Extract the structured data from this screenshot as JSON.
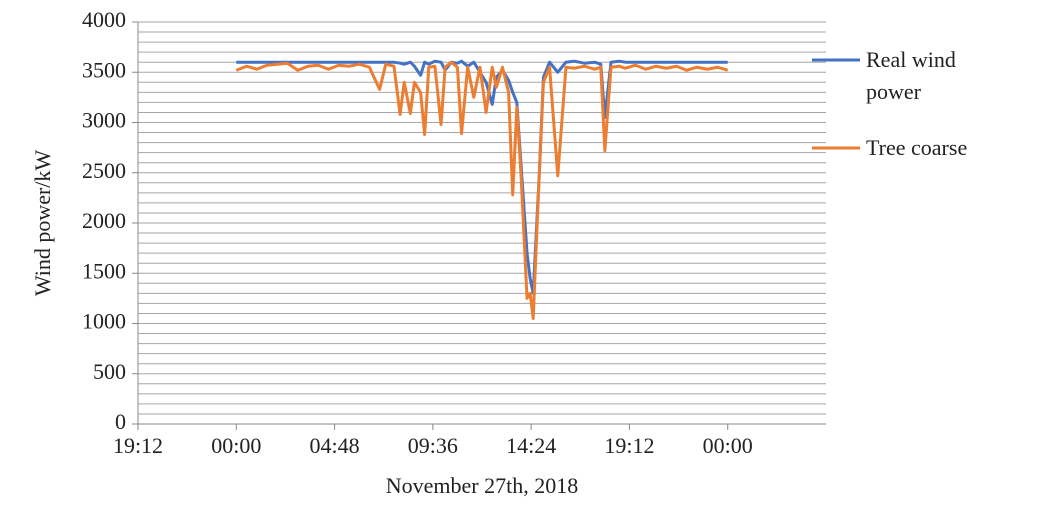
{
  "chart_data": {
    "type": "line",
    "y_label": "Wind power/kW",
    "x_label": "November 27th, 2018",
    "xlim": [
      -4.8,
      28.8
    ],
    "xticks": [
      {
        "value": -4.8,
        "label": "19:12"
      },
      {
        "value": 0,
        "label": "00:00"
      },
      {
        "value": 4.8,
        "label": "04:48"
      },
      {
        "value": 9.6,
        "label": "09:36"
      },
      {
        "value": 14.4,
        "label": "14:24"
      },
      {
        "value": 19.2,
        "label": "19:12"
      },
      {
        "value": 24,
        "label": "00:00"
      }
    ],
    "ylim": [
      0,
      4000
    ],
    "yticks": [
      0,
      500,
      1000,
      1500,
      2000,
      2500,
      3000,
      3500,
      4000
    ],
    "grid": true,
    "minor_grid": true,
    "legend": "right",
    "x": [
      0,
      0.5,
      1,
      1.5,
      2,
      2.5,
      3,
      3.5,
      4,
      4.5,
      5,
      5.5,
      6,
      6.5,
      7,
      7.3,
      7.7,
      8,
      8.2,
      8.5,
      8.7,
      9,
      9.2,
      9.4,
      9.7,
      10,
      10.2,
      10.5,
      10.8,
      11,
      11.3,
      11.6,
      11.9,
      12.2,
      12.5,
      12.7,
      13,
      13.3,
      13.5,
      13.7,
      13.9,
      14.2,
      14.35,
      14.5,
      14.8,
      15,
      15.3,
      15.7,
      16.1,
      16.5,
      17,
      17.5,
      17.8,
      18,
      18.3,
      18.7,
      19,
      19.5,
      20,
      20.5,
      21,
      21.5,
      22,
      22.5,
      23,
      23.5,
      24
    ],
    "series": [
      {
        "name": "Real wind power",
        "color": "#4472c4",
        "values": [
          3600,
          3600,
          3600,
          3600,
          3600,
          3600,
          3600,
          3600,
          3600,
          3600,
          3600,
          3600,
          3600,
          3600,
          3600,
          3600,
          3600,
          3590,
          3580,
          3600,
          3560,
          3470,
          3600,
          3580,
          3610,
          3600,
          3520,
          3600,
          3590,
          3610,
          3560,
          3600,
          3500,
          3400,
          3180,
          3450,
          3520,
          3420,
          3300,
          3200,
          2600,
          1700,
          1450,
          1300,
          2500,
          3450,
          3600,
          3500,
          3600,
          3610,
          3590,
          3600,
          3580,
          3050,
          3600,
          3610,
          3600,
          3600,
          3600,
          3600,
          3600,
          3600,
          3600,
          3600,
          3600,
          3600,
          3600
        ]
      },
      {
        "name": "Tree coarse",
        "color": "#ed7d31",
        "values": [
          3520,
          3560,
          3530,
          3570,
          3580,
          3590,
          3520,
          3560,
          3570,
          3530,
          3570,
          3560,
          3580,
          3550,
          3330,
          3580,
          3560,
          3080,
          3400,
          3090,
          3400,
          3300,
          2880,
          3550,
          3560,
          2980,
          3550,
          3600,
          3550,
          2890,
          3550,
          3250,
          3550,
          3100,
          3550,
          3350,
          3550,
          3300,
          2280,
          3150,
          2500,
          1250,
          1300,
          1050,
          2500,
          3400,
          3550,
          2470,
          3550,
          3540,
          3560,
          3530,
          3550,
          2720,
          3550,
          3560,
          3540,
          3570,
          3530,
          3560,
          3540,
          3560,
          3520,
          3550,
          3530,
          3550,
          3520
        ]
      }
    ]
  }
}
